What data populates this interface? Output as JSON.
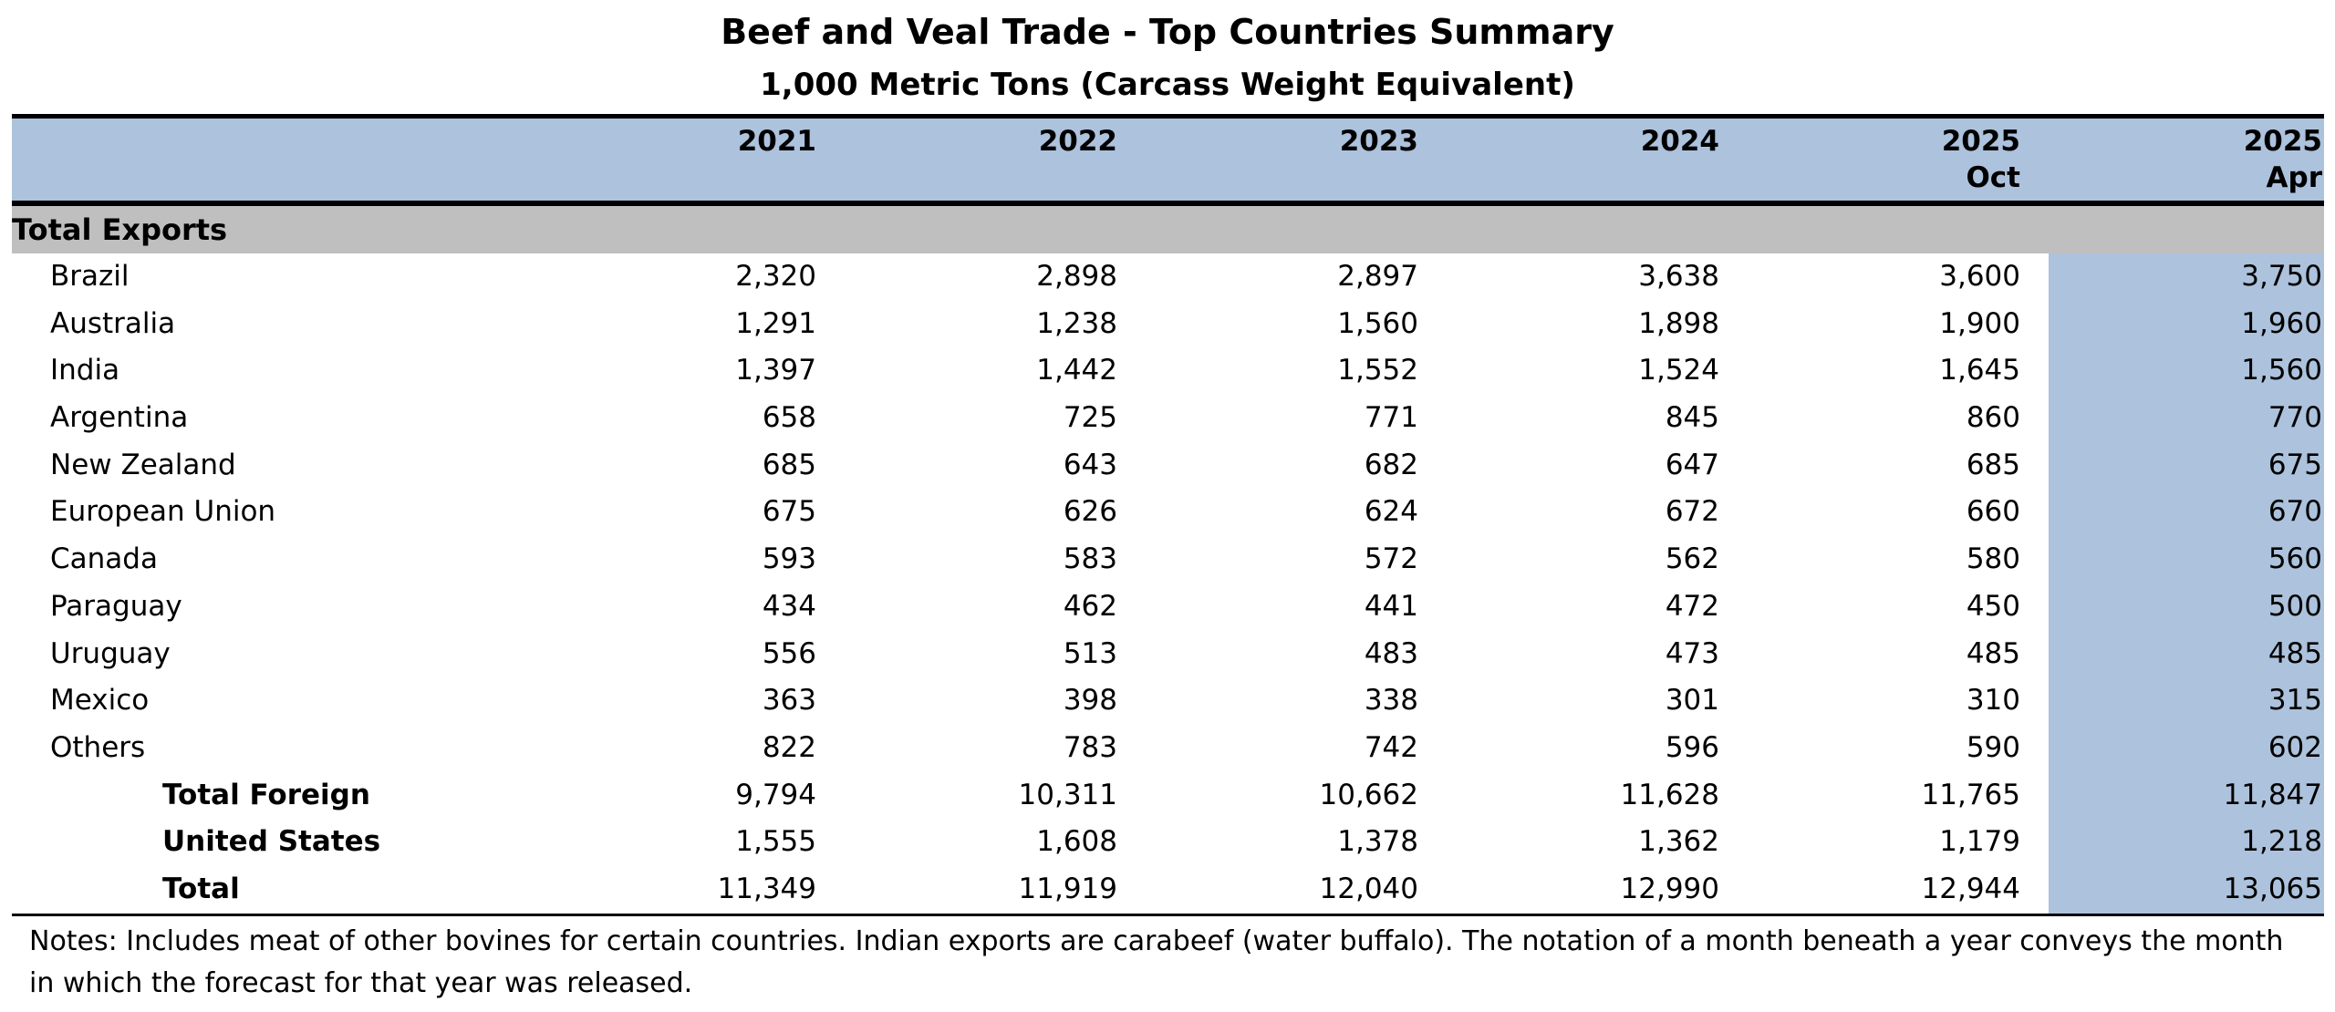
{
  "title": "Beef and Veal Trade - Top Countries Summary",
  "subtitle": "1,000 Metric Tons (Carcass Weight Equivalent)",
  "chart_data": {
    "type": "table",
    "columns": [
      {
        "year": "2021",
        "month": ""
      },
      {
        "year": "2022",
        "month": ""
      },
      {
        "year": "2023",
        "month": ""
      },
      {
        "year": "2024",
        "month": ""
      },
      {
        "year": "2025",
        "month": "Oct"
      },
      {
        "year": "2025",
        "month": "Apr"
      }
    ],
    "section": "Total Exports",
    "rows": [
      {
        "label": "Brazil",
        "values": [
          "2,320",
          "2,898",
          "2,897",
          "3,638",
          "3,600",
          "3,750"
        ],
        "total": false
      },
      {
        "label": "Australia",
        "values": [
          "1,291",
          "1,238",
          "1,560",
          "1,898",
          "1,900",
          "1,960"
        ],
        "total": false
      },
      {
        "label": "India",
        "values": [
          "1,397",
          "1,442",
          "1,552",
          "1,524",
          "1,645",
          "1,560"
        ],
        "total": false
      },
      {
        "label": "Argentina",
        "values": [
          "658",
          "725",
          "771",
          "845",
          "860",
          "770"
        ],
        "total": false
      },
      {
        "label": "New Zealand",
        "values": [
          "685",
          "643",
          "682",
          "647",
          "685",
          "675"
        ],
        "total": false
      },
      {
        "label": "European Union",
        "values": [
          "675",
          "626",
          "624",
          "672",
          "660",
          "670"
        ],
        "total": false
      },
      {
        "label": "Canada",
        "values": [
          "593",
          "583",
          "572",
          "562",
          "580",
          "560"
        ],
        "total": false
      },
      {
        "label": "Paraguay",
        "values": [
          "434",
          "462",
          "441",
          "472",
          "450",
          "500"
        ],
        "total": false
      },
      {
        "label": "Uruguay",
        "values": [
          "556",
          "513",
          "483",
          "473",
          "485",
          "485"
        ],
        "total": false
      },
      {
        "label": "Mexico",
        "values": [
          "363",
          "398",
          "338",
          "301",
          "310",
          "315"
        ],
        "total": false
      },
      {
        "label": "Others",
        "values": [
          "822",
          "783",
          "742",
          "596",
          "590",
          "602"
        ],
        "total": false
      },
      {
        "label": "Total Foreign",
        "values": [
          "9,794",
          "10,311",
          "10,662",
          "11,628",
          "11,765",
          "11,847"
        ],
        "total": true
      },
      {
        "label": "United States",
        "values": [
          "1,555",
          "1,608",
          "1,378",
          "1,362",
          "1,179",
          "1,218"
        ],
        "total": true
      },
      {
        "label": "Total",
        "values": [
          "11,349",
          "11,919",
          "12,040",
          "12,990",
          "12,944",
          "13,065"
        ],
        "total": true
      }
    ]
  },
  "notes": "Notes:  Includes meat of other bovines for certain countries.  Indian exports are carabeef (water buffalo).  The notation of a month beneath a year conveys the month in which the forecast for that year was released.",
  "colors": {
    "header_fill": "#adc2dc",
    "section_fill": "#bfbfbf"
  }
}
